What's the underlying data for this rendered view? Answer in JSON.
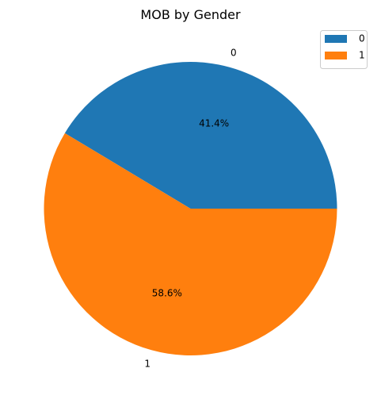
{
  "chart_data": {
    "type": "pie",
    "title": "MOB by Gender",
    "categories": [
      "0",
      "1"
    ],
    "values": [
      41.4,
      58.6
    ],
    "data_labels": [
      "41.4%",
      "58.6%"
    ],
    "colors": [
      "#1f77b4",
      "#ff7f0e"
    ],
    "legend": {
      "placement": "top-right",
      "entries": [
        "0",
        "1"
      ]
    }
  }
}
